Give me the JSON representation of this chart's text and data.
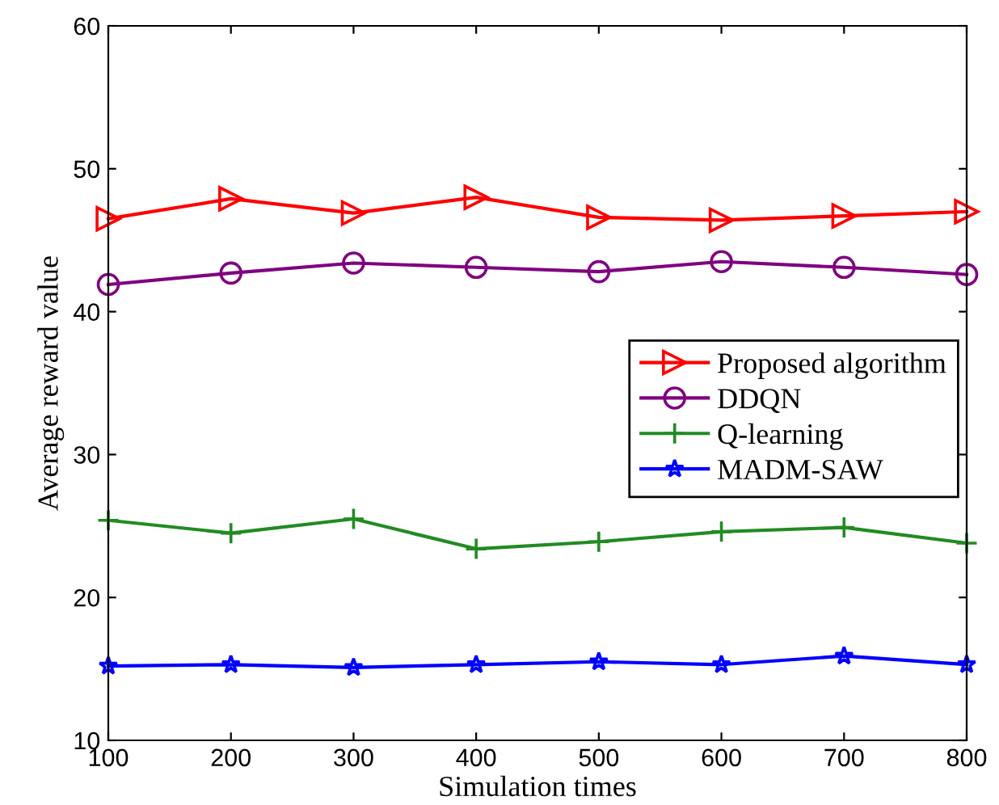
{
  "chart_data": {
    "type": "line",
    "xlabel": "Simulation times",
    "ylabel": "Average reward value",
    "x": [
      100,
      200,
      300,
      400,
      500,
      600,
      700,
      800
    ],
    "xlim": [
      100,
      800
    ],
    "xticks": [
      100,
      200,
      300,
      400,
      500,
      600,
      700,
      800
    ],
    "ylim": [
      10,
      60
    ],
    "yticks": [
      10,
      20,
      30,
      40,
      50,
      60
    ],
    "grid": false,
    "legend": "center right",
    "line_style": "solid",
    "series": [
      {
        "name": "Proposed algorithm",
        "color": "#ff0000",
        "marker": "triangle",
        "values": [
          46.5,
          47.9,
          46.9,
          48.0,
          46.6,
          46.4,
          46.7,
          47.0
        ]
      },
      {
        "name": "DDQN",
        "color": "#800080",
        "marker": "circle",
        "values": [
          41.9,
          42.7,
          43.4,
          43.1,
          42.8,
          43.5,
          43.1,
          42.6
        ]
      },
      {
        "name": "Q-learning",
        "color": "#228b22",
        "marker": "plus",
        "values": [
          25.4,
          24.5,
          25.5,
          23.4,
          23.9,
          24.6,
          24.9,
          23.8
        ]
      },
      {
        "name": "MADM-SAW",
        "color": "#0000ff",
        "marker": "star",
        "values": [
          15.2,
          15.3,
          15.1,
          15.3,
          15.5,
          15.3,
          15.9,
          15.3
        ]
      }
    ]
  }
}
